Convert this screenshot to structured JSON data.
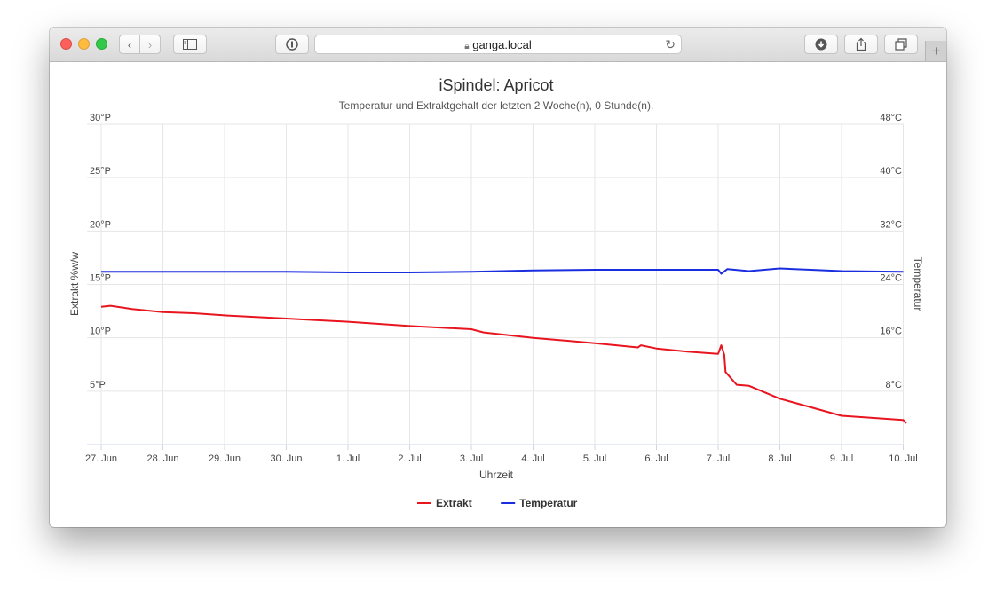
{
  "browser": {
    "address": "ganga.local"
  },
  "chart_data": {
    "type": "line",
    "title": "iSpindel: Apricot",
    "subtitle": "Temperatur und Extraktgehalt der letzten 2 Woche(n), 0 Stunde(n).",
    "xlabel": "Uhrzeit",
    "ylabel_left": "Extrakt %w/w",
    "ylabel_right": "Temperatur",
    "x_ticks": [
      "27. Jun",
      "28. Jun",
      "29. Jun",
      "30. Jun",
      "1. Jul",
      "2. Jul",
      "3. Jul",
      "4. Jul",
      "5. Jul",
      "6. Jul",
      "7. Jul",
      "8. Jul",
      "9. Jul",
      "10. Jul"
    ],
    "y_left_ticks": [
      "5°P",
      "10°P",
      "15°P",
      "20°P",
      "25°P",
      "30°P"
    ],
    "y_left_range": [
      0,
      30
    ],
    "y_right_ticks": [
      "8°C",
      "16°C",
      "24°C",
      "32°C",
      "40°C",
      "48°C"
    ],
    "y_right_range": [
      0,
      48
    ],
    "grid": true,
    "legend_position": "bottom",
    "series": [
      {
        "name": "Extrakt",
        "axis": "left",
        "color": "#e8141e",
        "points": [
          [
            0,
            12.9
          ],
          [
            0.15,
            13.0
          ],
          [
            0.5,
            12.7
          ],
          [
            1,
            12.4
          ],
          [
            1.5,
            12.3
          ],
          [
            2,
            12.1
          ],
          [
            3,
            11.8
          ],
          [
            4,
            11.5
          ],
          [
            5,
            11.1
          ],
          [
            6,
            10.8
          ],
          [
            6.2,
            10.5
          ],
          [
            7,
            10.0
          ],
          [
            8,
            9.5
          ],
          [
            8.7,
            9.1
          ],
          [
            8.75,
            9.3
          ],
          [
            9,
            9.0
          ],
          [
            9.5,
            8.7
          ],
          [
            10,
            8.5
          ],
          [
            10.05,
            9.3
          ],
          [
            10.1,
            8.4
          ],
          [
            10.12,
            6.8
          ],
          [
            10.3,
            5.6
          ],
          [
            10.5,
            5.5
          ],
          [
            11,
            4.3
          ],
          [
            11.5,
            3.5
          ],
          [
            12,
            2.7
          ],
          [
            12.5,
            2.5
          ],
          [
            13,
            2.3
          ],
          [
            13.05,
            2.0
          ]
        ]
      },
      {
        "name": "Temperatur",
        "axis": "right",
        "color": "#1a2ee0",
        "points": [
          [
            0,
            25.9
          ],
          [
            1,
            25.9
          ],
          [
            2,
            25.9
          ],
          [
            3,
            25.9
          ],
          [
            4,
            25.8
          ],
          [
            5,
            25.8
          ],
          [
            6,
            25.9
          ],
          [
            7,
            26.1
          ],
          [
            8,
            26.2
          ],
          [
            9,
            26.2
          ],
          [
            10,
            26.2
          ],
          [
            10.05,
            25.6
          ],
          [
            10.15,
            26.3
          ],
          [
            10.5,
            26.0
          ],
          [
            11,
            26.4
          ],
          [
            11.5,
            26.2
          ],
          [
            12,
            26.0
          ],
          [
            13,
            25.9
          ]
        ]
      }
    ]
  }
}
